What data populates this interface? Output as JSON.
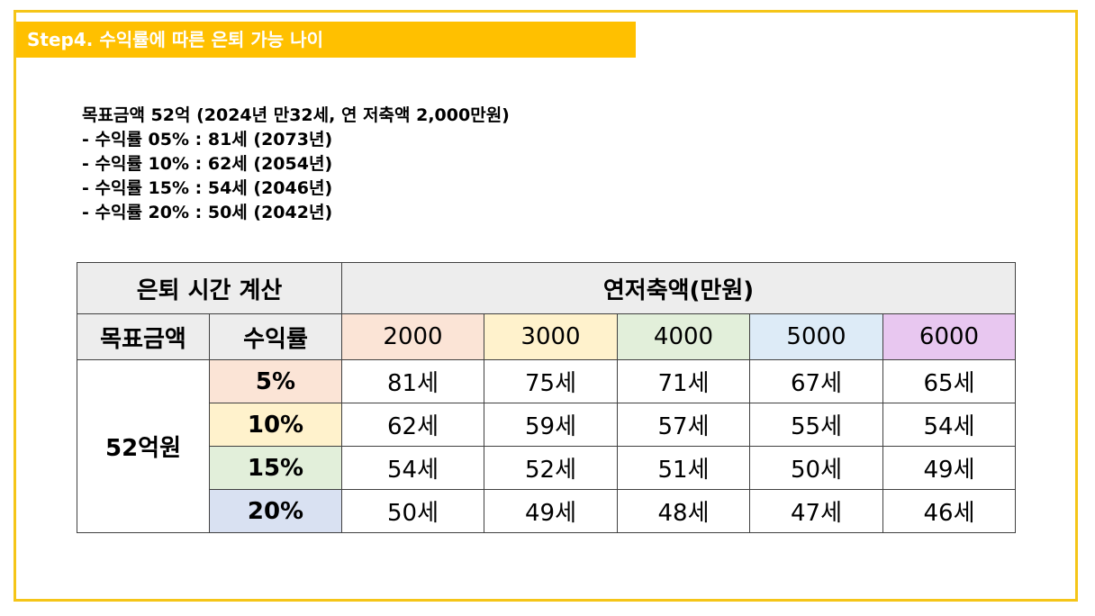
{
  "banner": {
    "title": "Step4. 수익률에 따른 은퇴 가능 나이"
  },
  "summary": {
    "lines": [
      "목표금액 52억 (2024년 만32세, 연 저축액 2,000만원)",
      "- 수익률 05% : 81세 (2073년)",
      "- 수익률 10% : 62세 (2054년)",
      "- 수익률 15% : 54세 (2046년)",
      "- 수익률 20% : 50세 (2042년)"
    ]
  },
  "table": {
    "title": "은퇴 시간 계산",
    "savings_header": "연저축액(만원)",
    "target_label": "목표금액",
    "rate_label": "수익률",
    "target_value": "52억원",
    "columns": [
      "2000",
      "3000",
      "4000",
      "5000",
      "6000"
    ],
    "column_colors": [
      "#FBE4D6",
      "#FFF2CC",
      "#E2EFDA",
      "#DDEBF7",
      "#E8C7F0"
    ],
    "rows": [
      {
        "rate": "5%",
        "color": "#FBE4D6",
        "ages": [
          "81세",
          "75세",
          "71세",
          "67세",
          "65세"
        ]
      },
      {
        "rate": "10%",
        "color": "#FFF2CC",
        "ages": [
          "62세",
          "59세",
          "57세",
          "55세",
          "54세"
        ]
      },
      {
        "rate": "15%",
        "color": "#E2EFDA",
        "ages": [
          "54세",
          "52세",
          "51세",
          "50세",
          "49세"
        ]
      },
      {
        "rate": "20%",
        "color": "#D9E1F2",
        "ages": [
          "50세",
          "49세",
          "48세",
          "47세",
          "46세"
        ]
      }
    ]
  },
  "colors": {
    "frame": "#F5C518",
    "banner": "#FFC000",
    "header_gray": "#EDEDED"
  }
}
